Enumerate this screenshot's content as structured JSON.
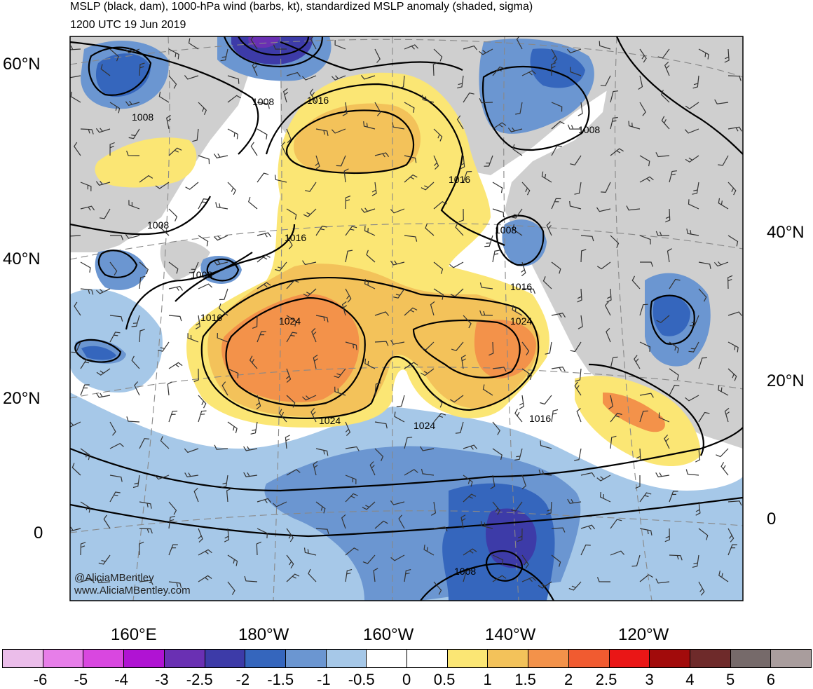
{
  "header": {
    "title": "MSLP (black, dam), 1000-hPa wind (barbs, kt), standardized MSLP anomaly (shaded, sigma)",
    "valid_time": "1200 UTC 19 Jun 2019"
  },
  "lat_labels_left": [
    "60°N",
    "40°N",
    "20°N",
    "0"
  ],
  "lat_labels_right": [
    "40°N",
    "20°N",
    "0"
  ],
  "lon_labels": [
    "160°E",
    "180°W",
    "160°W",
    "140°W",
    "120°W"
  ],
  "isobar_labels": [
    {
      "text": "1008"
    },
    {
      "text": "1016"
    },
    {
      "text": "1008"
    },
    {
      "text": "1008"
    },
    {
      "text": "1016"
    },
    {
      "text": "1008"
    },
    {
      "text": "1016"
    },
    {
      "text": "1016"
    },
    {
      "text": "1008"
    },
    {
      "text": "1016"
    },
    {
      "text": "1024"
    },
    {
      "text": "1024"
    },
    {
      "text": "1024"
    },
    {
      "text": "1024"
    },
    {
      "text": "1016"
    },
    {
      "text": "1008"
    }
  ],
  "credits": [
    "@AliciaMBentley",
    "www.AliciaMBentley.com"
  ],
  "colorbar": {
    "colors": [
      "#ebbdea",
      "#e77ee9",
      "#d947e0",
      "#b013d3",
      "#6a30b3",
      "#3d3ba8",
      "#3566bd",
      "#6b96d1",
      "#a6c8e8",
      "#ffffff",
      "#ffffff",
      "#fbe674",
      "#f3c25a",
      "#f3924a",
      "#f15b30",
      "#ea1616",
      "#a20b0b",
      "#6e2a2a",
      "#766a6a",
      "#a99d9d"
    ],
    "labels": [
      "-6",
      "-5",
      "-4",
      "-3",
      "-2.5",
      "-2",
      "-1.5",
      "-1",
      "-0.5",
      "0",
      "0.5",
      "1",
      "1.5",
      "2",
      "2.5",
      "3",
      "4",
      "5",
      "6"
    ]
  },
  "palette": {
    "land": "#cfcfcf",
    "pos_0_5": "#fbe674",
    "pos_1": "#f3c25a",
    "pos_1_5": "#f3924a",
    "pos_2": "#f15b30",
    "neg_0_5": "#a6c8e8",
    "neg_1": "#6b96d1",
    "neg_1_5": "#3566bd",
    "neg_2": "#3d3ba8",
    "neg_2_5": "#6a30b3"
  }
}
